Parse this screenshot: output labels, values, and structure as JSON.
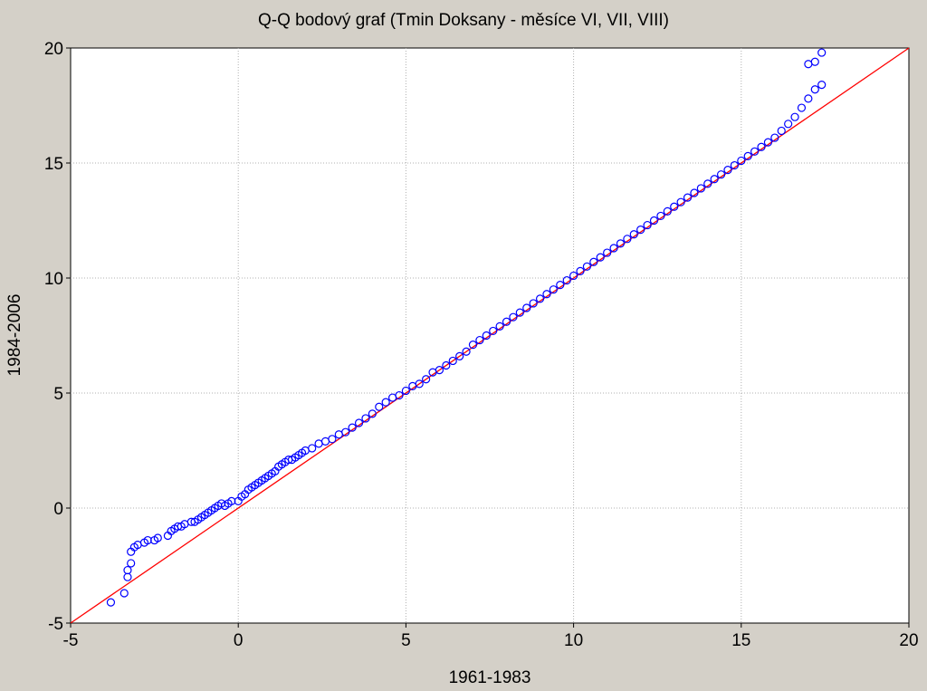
{
  "chart_data": {
    "type": "scatter",
    "title": "Q-Q bodový graf (Tmin Doksany - měsíce VI, VII, VIII)",
    "xlabel": "1961-1983",
    "ylabel": "1984-2006",
    "xlim": [
      -5,
      20
    ],
    "ylim": [
      -5,
      20
    ],
    "xticks": [
      -5,
      0,
      5,
      10,
      15,
      20
    ],
    "yticks": [
      -5,
      0,
      5,
      10,
      15,
      20
    ],
    "xtick_labels": [
      "-5",
      "0",
      "5",
      "10",
      "15",
      "20"
    ],
    "ytick_labels": [
      "-5",
      "0",
      "5",
      "10",
      "15",
      "20"
    ],
    "grid": true,
    "marker_color": "#0000ff",
    "fit_line_color": "#ff0000",
    "fit_line": {
      "slope": 1.0,
      "intercept": 0.0
    },
    "series": [
      {
        "x": [
          -3.8,
          -3.4,
          -3.3,
          -3.3,
          -3.2,
          -3.2,
          -3.1,
          -3.0,
          -2.8,
          -2.7,
          -2.5,
          -2.4,
          -2.1,
          -2.0,
          -1.9,
          -1.8,
          -1.7,
          -1.6,
          -1.4,
          -1.3,
          -1.2,
          -1.1,
          -1.0,
          -0.9,
          -0.8,
          -0.7,
          -0.6,
          -0.5,
          -0.4,
          -0.3,
          -0.2,
          0.0,
          0.1,
          0.2,
          0.3,
          0.4,
          0.5,
          0.6,
          0.7,
          0.8,
          0.9,
          1.0,
          1.1,
          1.2,
          1.3,
          1.4,
          1.5,
          1.6,
          1.7,
          1.8,
          1.9,
          2.0,
          2.2,
          2.4,
          2.6,
          2.8,
          3.0,
          3.2,
          3.4,
          3.6,
          3.8,
          4.0,
          4.2,
          4.4,
          4.6,
          4.8,
          5.0,
          5.2,
          5.4,
          5.6,
          5.8,
          6.0,
          6.2,
          6.4,
          6.6,
          6.8,
          7.0,
          7.2,
          7.4,
          7.6,
          7.8,
          8.0,
          8.2,
          8.4,
          8.6,
          8.8,
          9.0,
          9.2,
          9.4,
          9.6,
          9.8,
          10.0,
          10.2,
          10.4,
          10.6,
          10.8,
          11.0,
          11.2,
          11.4,
          11.6,
          11.8,
          12.0,
          12.2,
          12.4,
          12.6,
          12.8,
          13.0,
          13.2,
          13.4,
          13.6,
          13.8,
          14.0,
          14.2,
          14.4,
          14.6,
          14.8,
          15.0,
          15.2,
          15.4,
          15.6,
          15.8,
          16.0,
          16.2,
          16.4,
          16.6,
          16.8,
          17.0,
          17.2,
          17.4
        ],
        "y": [
          -4.1,
          -3.7,
          -3.0,
          -2.7,
          -2.4,
          -1.9,
          -1.7,
          -1.6,
          -1.5,
          -1.4,
          -1.4,
          -1.3,
          -1.2,
          -1.0,
          -0.9,
          -0.8,
          -0.8,
          -0.7,
          -0.6,
          -0.6,
          -0.5,
          -0.4,
          -0.3,
          -0.2,
          -0.1,
          0.0,
          0.1,
          0.2,
          0.1,
          0.2,
          0.3,
          0.3,
          0.5,
          0.6,
          0.8,
          0.9,
          1.0,
          1.1,
          1.2,
          1.3,
          1.4,
          1.5,
          1.6,
          1.8,
          1.9,
          2.0,
          2.1,
          2.1,
          2.2,
          2.3,
          2.4,
          2.5,
          2.6,
          2.8,
          2.9,
          3.0,
          3.2,
          3.3,
          3.5,
          3.7,
          3.9,
          4.1,
          4.4,
          4.6,
          4.8,
          4.9,
          5.1,
          5.3,
          5.4,
          5.6,
          5.9,
          6.0,
          6.2,
          6.4,
          6.6,
          6.8,
          7.1,
          7.3,
          7.5,
          7.7,
          7.9,
          8.1,
          8.3,
          8.5,
          8.7,
          8.9,
          9.1,
          9.3,
          9.5,
          9.7,
          9.9,
          10.1,
          10.3,
          10.5,
          10.7,
          10.9,
          11.1,
          11.3,
          11.5,
          11.7,
          11.9,
          12.1,
          12.3,
          12.5,
          12.7,
          12.9,
          13.1,
          13.3,
          13.5,
          13.7,
          13.9,
          14.1,
          14.3,
          14.5,
          14.7,
          14.9,
          15.1,
          15.3,
          15.5,
          15.7,
          15.9,
          16.1,
          16.4,
          16.7,
          17.0,
          17.4,
          17.8,
          18.2,
          18.4
        ]
      }
    ],
    "extra_points": {
      "x": [
        17.0,
        17.2,
        17.4
      ],
      "y": [
        19.3,
        19.4,
        19.8
      ]
    }
  }
}
